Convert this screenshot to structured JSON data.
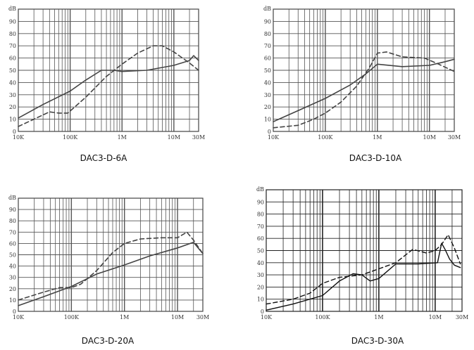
{
  "chart_data": [
    {
      "type": "line",
      "title": "DAC3-D-6A",
      "y_unit": "dB",
      "ylim": [
        0,
        100
      ],
      "y_ticks": [
        "0",
        "10",
        "20",
        "30",
        "40",
        "50",
        "60",
        "70",
        "80",
        "90"
      ],
      "xscale": "log",
      "x_ticks": [
        "10K",
        "100K",
        "1M",
        "10M",
        "30M"
      ],
      "xlim": [
        "10K",
        "30M"
      ],
      "grid": true,
      "series": [
        {
          "style": "solid",
          "x_hz": [
            10000,
            30000,
            100000,
            200000,
            400000,
            700000,
            1000000,
            3000000,
            10000000,
            20000000,
            24000000,
            30000000
          ],
          "values": [
            11,
            22,
            33,
            42,
            50,
            50,
            49,
            50,
            54,
            58,
            62,
            58
          ]
        },
        {
          "style": "dashed",
          "x_hz": [
            10000,
            20000,
            40000,
            60000,
            90000,
            200000,
            500000,
            1000000,
            2000000,
            4000000,
            6000000,
            10000000,
            20000000,
            30000000
          ],
          "values": [
            4,
            10,
            16,
            15,
            15,
            28,
            45,
            55,
            64,
            70,
            70,
            65,
            56,
            50
          ]
        }
      ]
    },
    {
      "type": "line",
      "title": "DAC3-D-10A",
      "y_unit": "dB",
      "ylim": [
        0,
        100
      ],
      "y_ticks": [
        "0",
        "10",
        "20",
        "30",
        "40",
        "50",
        "60",
        "70",
        "80",
        "90"
      ],
      "xscale": "log",
      "x_ticks": [
        "10K",
        "100K",
        "1M",
        "10M",
        "30M"
      ],
      "xlim": [
        "10K",
        "30M"
      ],
      "grid": true,
      "series": [
        {
          "style": "solid",
          "x_hz": [
            10000,
            30000,
            100000,
            300000,
            600000,
            1000000,
            3000000,
            10000000,
            20000000,
            30000000
          ],
          "values": [
            8,
            17,
            27,
            38,
            47,
            55,
            53,
            54,
            57,
            59
          ]
        },
        {
          "style": "dashed",
          "x_hz": [
            10000,
            30000,
            60000,
            100000,
            200000,
            400000,
            700000,
            1000000,
            1500000,
            3000000,
            8000000,
            15000000,
            30000000
          ],
          "values": [
            3,
            5,
            10,
            15,
            24,
            37,
            52,
            64,
            65,
            61,
            60,
            55,
            49
          ]
        }
      ]
    },
    {
      "type": "line",
      "title": "DAC3-D-20A",
      "y_unit": "dB",
      "ylim": [
        0,
        100
      ],
      "y_ticks": [
        "0",
        "10",
        "20",
        "30",
        "40",
        "50",
        "60",
        "70",
        "80",
        "90"
      ],
      "xscale": "log",
      "x_ticks": [
        "10K",
        "100K",
        "1M",
        "10M",
        "30M"
      ],
      "xlim": [
        "10K",
        "30M"
      ],
      "grid": true,
      "series": [
        {
          "style": "solid",
          "x_hz": [
            10000,
            30000,
            100000,
            300000,
            1000000,
            3000000,
            10000000,
            20000000,
            30000000
          ],
          "values": [
            5,
            13,
            22,
            33,
            41,
            49,
            56,
            61,
            51
          ]
        },
        {
          "style": "dashed",
          "x_hz": [
            10000,
            30000,
            60000,
            100000,
            150000,
            300000,
            600000,
            1000000,
            2000000,
            5000000,
            10000000,
            15000000,
            20000000,
            30000000
          ],
          "values": [
            10,
            17,
            21,
            21,
            24,
            36,
            52,
            60,
            64,
            65,
            65,
            70,
            63,
            51
          ]
        }
      ]
    },
    {
      "type": "line",
      "title": "DAC3-D-30A",
      "y_unit": "dB",
      "ylim": [
        0,
        100
      ],
      "y_ticks": [
        "0",
        "10",
        "20",
        "30",
        "40",
        "50",
        "60",
        "70",
        "80",
        "90"
      ],
      "xscale": "log",
      "x_ticks": [
        "10K",
        "100K",
        "1M",
        "10M",
        "30M"
      ],
      "xlim": [
        "10K",
        "30M"
      ],
      "grid": true,
      "series": [
        {
          "style": "solid",
          "x_hz": [
            10000,
            30000,
            100000,
            200000,
            350000,
            500000,
            700000,
            1000000,
            2000000,
            5000000,
            11000000,
            13000000,
            15000000,
            18000000,
            22000000,
            28000000
          ],
          "values": [
            1,
            6,
            13,
            25,
            31,
            30,
            25,
            27,
            39,
            39,
            40,
            56,
            51,
            43,
            38,
            36
          ]
        },
        {
          "style": "dashed",
          "x_hz": [
            10000,
            30000,
            60000,
            100000,
            200000,
            500000,
            1000000,
            2000000,
            4000000,
            7000000,
            10000000,
            13000000,
            17000000,
            22000000,
            28000000
          ],
          "values": [
            6,
            10,
            15,
            23,
            28,
            30,
            35,
            40,
            51,
            48,
            50,
            55,
            63,
            52,
            39
          ]
        }
      ]
    }
  ]
}
